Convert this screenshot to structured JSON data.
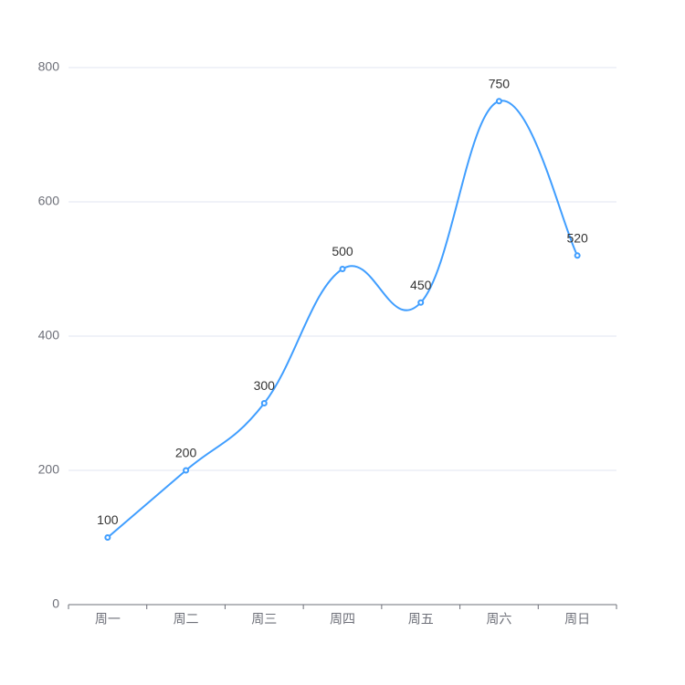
{
  "chart_data": {
    "type": "line",
    "categories": [
      "周一",
      "周二",
      "周三",
      "周四",
      "周五",
      "周六",
      "周日"
    ],
    "values": [
      100,
      200,
      300,
      500,
      450,
      750,
      520
    ],
    "color": "#409eff",
    "ylim": [
      0,
      800
    ],
    "yticks": [
      0,
      200,
      400,
      600,
      800
    ],
    "grid": true,
    "smooth": true
  }
}
